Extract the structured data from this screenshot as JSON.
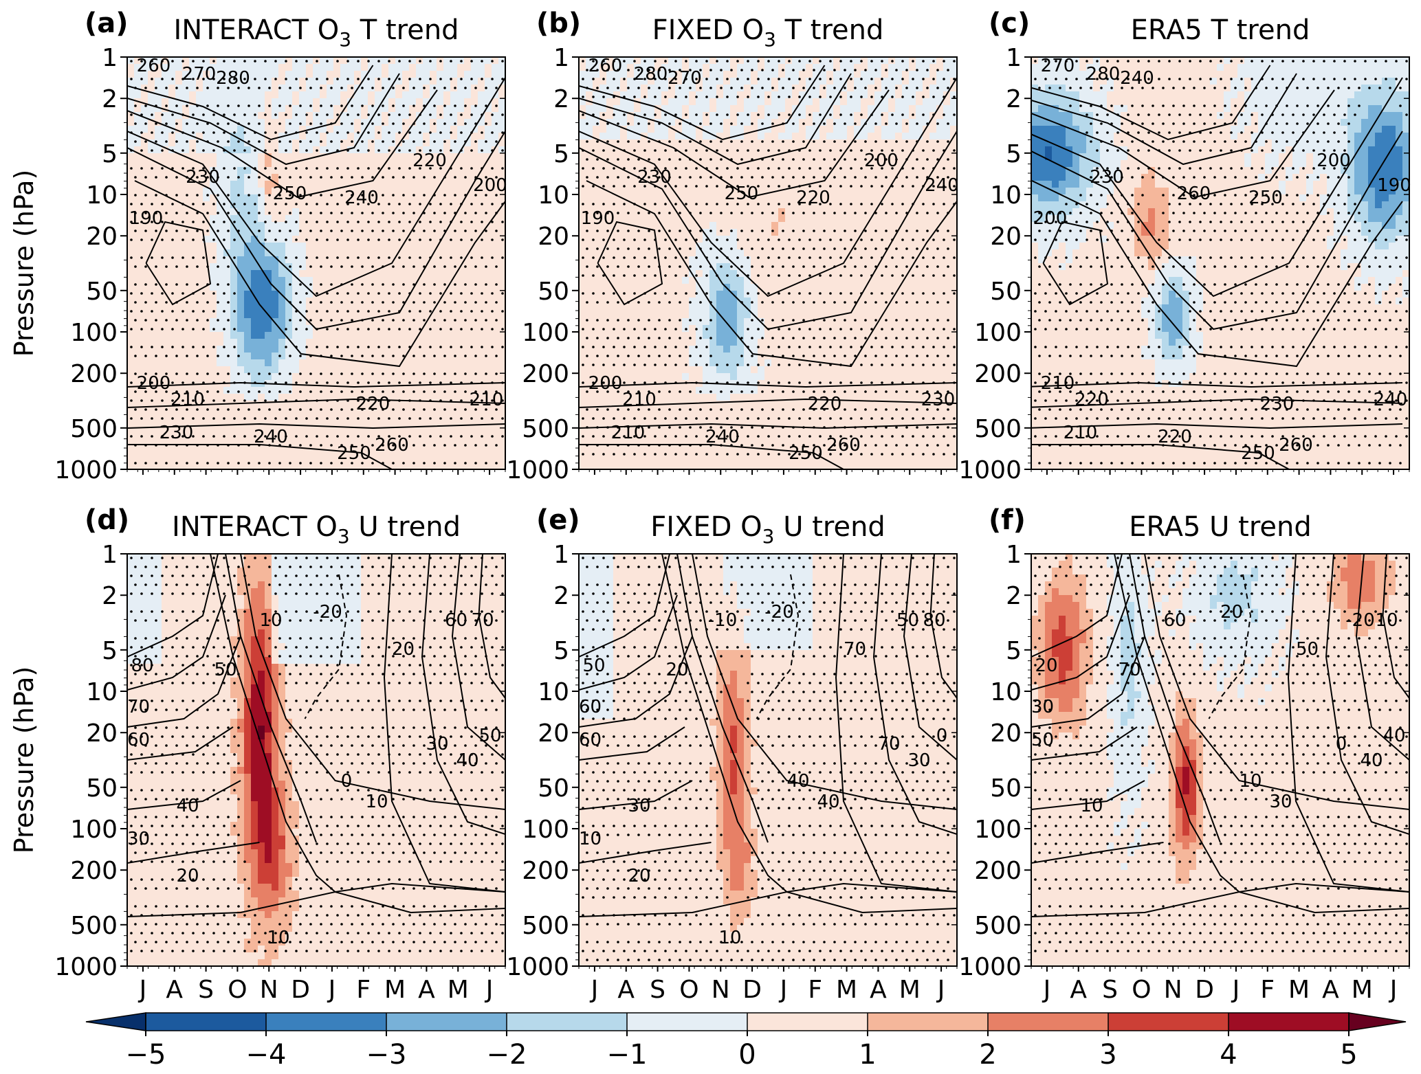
{
  "colors": {
    "levels": [
      "#08306b",
      "#1c5a9e",
      "#3a80bd",
      "#78b1d8",
      "#b7d9eb",
      "#e5eef5",
      "#fbe5da",
      "#f5b79b",
      "#e78066",
      "#cc3f36",
      "#9e0d24",
      "#67001f"
    ],
    "dots": "#000000",
    "contour": "#000000"
  },
  "chart_data": [
    {
      "id": "a",
      "panel_label": "(a)",
      "title_main": "INTERACT O",
      "title_sub": "3",
      "title_rest": " T trend",
      "type": "heatmap",
      "variable": "T",
      "contour_labels": [
        "260",
        "270",
        "280",
        "230",
        "250",
        "240",
        "220",
        "200",
        "190",
        "200",
        "210",
        "220",
        "210",
        "230",
        "240",
        "250",
        "260"
      ]
    },
    {
      "id": "b",
      "panel_label": "(b)",
      "title_main": "FIXED O",
      "title_sub": "3",
      "title_rest": " T trend",
      "type": "heatmap",
      "variable": "T",
      "contour_labels": [
        "260",
        "280",
        "270",
        "230",
        "250",
        "220",
        "200",
        "240",
        "190",
        "200",
        "210",
        "220",
        "230",
        "210",
        "240",
        "250",
        "260"
      ]
    },
    {
      "id": "c",
      "panel_label": "(c)",
      "title_main": "ERA5 T trend",
      "title_sub": "",
      "title_rest": "",
      "type": "heatmap",
      "variable": "T",
      "contour_labels": [
        "270",
        "280",
        "240",
        "230",
        "260",
        "250",
        "200",
        "190",
        "200",
        "210",
        "220",
        "230",
        "240",
        "210",
        "220",
        "250",
        "260"
      ]
    },
    {
      "id": "d",
      "panel_label": "(d)",
      "title_main": "INTERACT O",
      "title_sub": "3",
      "title_rest": " U trend",
      "type": "heatmap",
      "variable": "U",
      "contour_labels": [
        "10",
        "-20",
        "60",
        "70",
        "80",
        "50",
        "20",
        "70",
        "60",
        "30",
        "50",
        "40",
        "0",
        "10",
        "40",
        "30",
        "20",
        "10"
      ]
    },
    {
      "id": "e",
      "panel_label": "(e)",
      "title_main": "FIXED O",
      "title_sub": "3",
      "title_rest": " U trend",
      "type": "heatmap",
      "variable": "U",
      "contour_labels": [
        "-10",
        "-20",
        "50",
        "80",
        "50",
        "20",
        "70",
        "60",
        "60",
        "70",
        "0",
        "30",
        "40",
        "40",
        "30",
        "10",
        "20",
        "10"
      ]
    },
    {
      "id": "f",
      "panel_label": "(f)",
      "title_main": "ERA5 U trend",
      "title_sub": "",
      "title_rest": "",
      "type": "heatmap",
      "variable": "U",
      "contour_labels": [
        "60",
        "20",
        "-20",
        "10",
        "20",
        "70",
        "50",
        "30",
        "50",
        "0",
        "40",
        "40",
        "10",
        "30",
        "10"
      ]
    }
  ],
  "axes": {
    "ylabel": "Pressure (hPa)",
    "y_ticks": [
      "1",
      "2",
      "5",
      "10",
      "20",
      "50",
      "100",
      "200",
      "500",
      "1000"
    ],
    "y_tick_values": [
      1,
      2,
      5,
      10,
      20,
      50,
      100,
      200,
      500,
      1000
    ],
    "y_scale": "log",
    "x_ticks": [
      "J",
      "A",
      "S",
      "O",
      "N",
      "D",
      "J",
      "F",
      "M",
      "A",
      "M",
      "J"
    ],
    "x_tick_positions": [
      0.5,
      1.5,
      2.5,
      3.5,
      4.5,
      5.5,
      6.5,
      7.5,
      8.5,
      9.5,
      10.5,
      11.5
    ],
    "x_range": [
      0,
      12
    ]
  },
  "colorbar": {
    "ticks": [
      "−5",
      "−4",
      "−3",
      "−2",
      "−1",
      "0",
      "1",
      "2",
      "3",
      "4",
      "5"
    ],
    "tick_values": [
      -5,
      -4,
      -3,
      -2,
      -1,
      0,
      1,
      2,
      3,
      4,
      5
    ],
    "extend": "both"
  }
}
